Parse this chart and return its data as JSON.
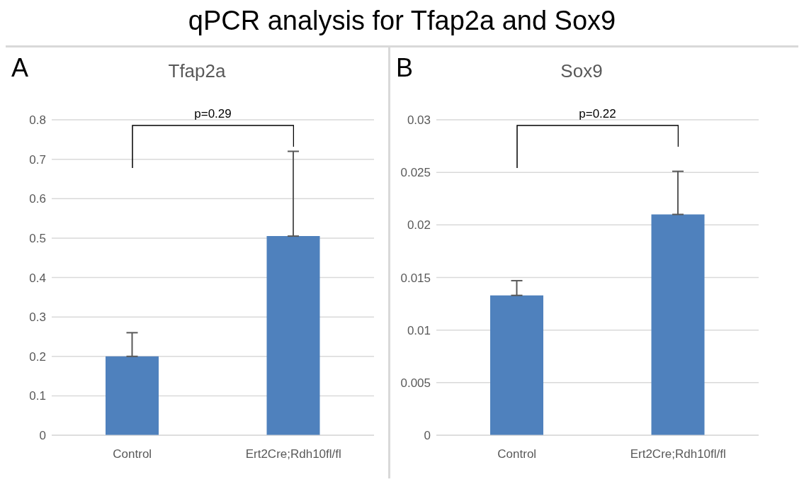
{
  "chart_data": [
    {
      "type": "bar",
      "title": "Tfap2a",
      "categories": [
        "Control",
        "Ert2Cre;Rdh10fl/fl"
      ],
      "values": [
        0.2,
        0.505
      ],
      "errors": [
        [
          0.2,
          0.26
        ],
        [
          0.505,
          0.72
        ]
      ],
      "color": "#4f81bd",
      "ylim": [
        0,
        0.8
      ],
      "yticks": [
        0,
        0.1,
        0.2,
        0.3,
        0.4,
        0.5,
        0.6,
        0.7,
        0.8
      ],
      "grid": "y",
      "annotations": [
        "qPCR analysis for Tfap2a and Sox9",
        "A",
        "p=0.29"
      ]
    },
    {
      "type": "bar",
      "title": "Sox9",
      "categories": [
        "Control",
        "Ert2Cre;Rdh10fl/fl"
      ],
      "values": [
        0.0133,
        0.021
      ],
      "errors": [
        [
          0.0133,
          0.0147
        ],
        [
          0.021,
          0.0251
        ]
      ],
      "color": "#4f81bd",
      "ylim": [
        0,
        0.03
      ],
      "yticks": [
        0,
        0.005,
        0.01,
        0.015,
        0.02,
        0.025,
        0.03
      ],
      "grid": "y",
      "annotations": [
        "B",
        "p=0.22"
      ]
    }
  ]
}
